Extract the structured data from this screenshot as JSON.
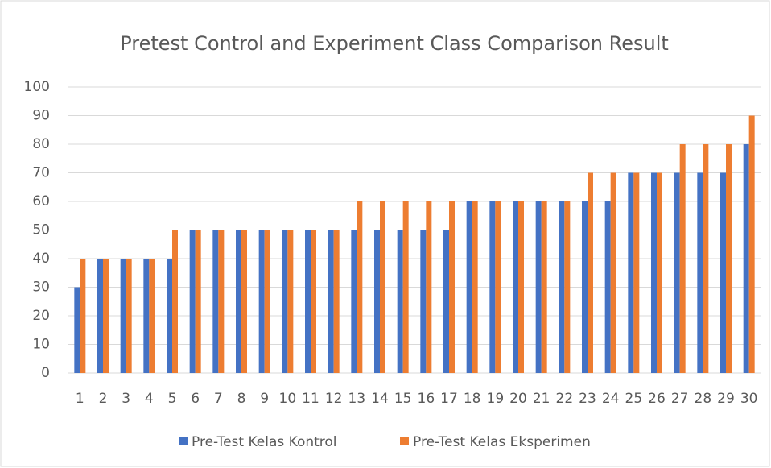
{
  "chart_data": {
    "type": "bar",
    "title": "Pretest Control and Experiment Class Comparison Result",
    "categories": [
      "1",
      "2",
      "3",
      "4",
      "5",
      "6",
      "7",
      "8",
      "9",
      "10",
      "11",
      "12",
      "13",
      "14",
      "15",
      "16",
      "17",
      "18",
      "19",
      "20",
      "21",
      "22",
      "23",
      "24",
      "25",
      "26",
      "27",
      "28",
      "29",
      "30"
    ],
    "series": [
      {
        "name": "Pre-Test Kelas Kontrol",
        "color": "#4472c4",
        "values": [
          30,
          40,
          40,
          40,
          40,
          50,
          50,
          50,
          50,
          50,
          50,
          50,
          50,
          50,
          50,
          50,
          50,
          60,
          60,
          60,
          60,
          60,
          60,
          60,
          70,
          70,
          70,
          70,
          70,
          80
        ]
      },
      {
        "name": "Pre-Test Kelas Eksperimen",
        "color": "#ed7d31",
        "values": [
          40,
          40,
          40,
          40,
          50,
          50,
          50,
          50,
          50,
          50,
          50,
          50,
          60,
          60,
          60,
          60,
          60,
          60,
          60,
          60,
          60,
          60,
          70,
          70,
          70,
          70,
          80,
          80,
          80,
          90
        ]
      }
    ],
    "ylim": [
      0,
      100
    ],
    "yticks": [
      0,
      10,
      20,
      30,
      40,
      50,
      60,
      70,
      80,
      90,
      100
    ],
    "grid": true,
    "legend": "bottom"
  }
}
